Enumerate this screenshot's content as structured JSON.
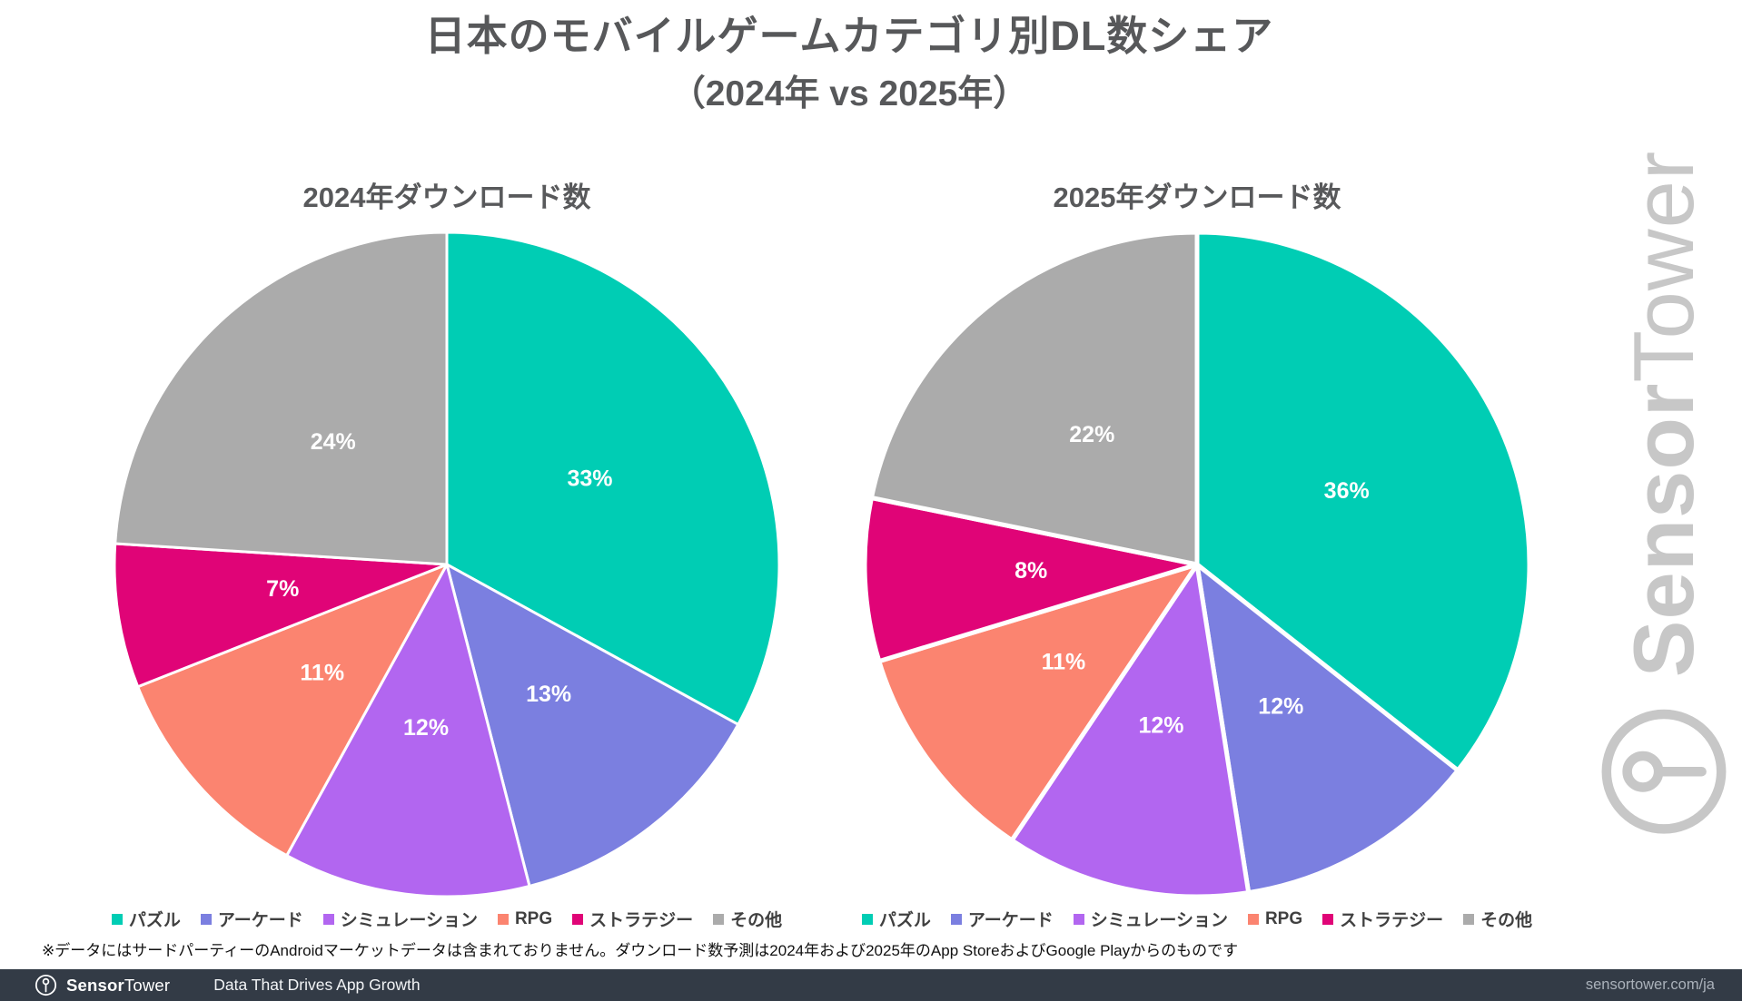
{
  "title": {
    "line1": "日本のモバイルゲームカテゴリ別DL数シェア",
    "line2": "（2024年 vs 2025年）"
  },
  "chart_data": [
    {
      "type": "pie",
      "title": "2024年ダウンロード数",
      "categories": [
        "パズル",
        "アーケード",
        "シミュレーション",
        "RPG",
        "ストラテジー",
        "その他"
      ],
      "values": [
        33,
        13,
        12,
        11,
        7,
        24
      ],
      "labels": [
        "33%",
        "13%",
        "12%",
        "11%",
        "7%",
        "24%"
      ],
      "colors": [
        "#00CDB4",
        "#7B7FE0",
        "#B266F0",
        "#FB8470",
        "#E00477",
        "#ABABAB"
      ],
      "value_suffix": "%",
      "start_angle": "top",
      "direction": "clockwise",
      "slice_gap": 3,
      "legend_position": "bottom"
    },
    {
      "type": "pie",
      "title": "2025年ダウンロード数",
      "categories": [
        "パズル",
        "アーケード",
        "シミュレーション",
        "RPG",
        "ストラテジー",
        "その他"
      ],
      "values": [
        36,
        12,
        12,
        11,
        8,
        22
      ],
      "labels": [
        "36%",
        "12%",
        "12%",
        "11%",
        "8%",
        "22%"
      ],
      "colors": [
        "#00CDB4",
        "#7B7FE0",
        "#B266F0",
        "#FB8470",
        "#E00477",
        "#ABABAB"
      ],
      "value_suffix": "%",
      "start_angle": "top",
      "direction": "clockwise",
      "slice_gap": 5,
      "legend_position": "bottom"
    }
  ],
  "footnote": "※データにはサードパーティーのAndroidマーケットデータは含まれておりません。ダウンロード数予測は2024年および2025年のApp StoreおよびGoogle Playからのものです",
  "footer": {
    "brand_bold": "Sensor",
    "brand_light": "Tower",
    "tagline": "Data That Drives App Growth",
    "url": "sensortower.com/ja"
  },
  "watermark": {
    "brand_bold": "Sensor",
    "brand_light": "Tower"
  }
}
